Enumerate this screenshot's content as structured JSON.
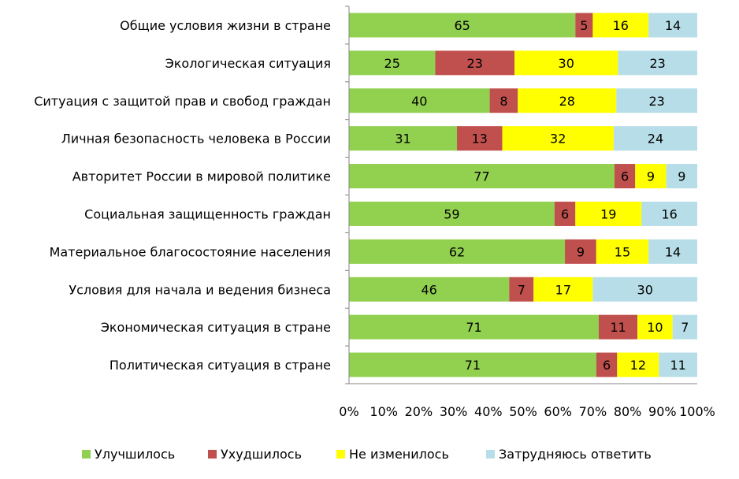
{
  "chart_data": {
    "type": "bar",
    "orientation": "horizontal",
    "stacked": true,
    "percent": true,
    "categories": [
      "Общие условия жизни в стране",
      "Экологическая ситуация",
      "Ситуация с защитой прав и свобод граждан",
      "Личная безопасность человека в России",
      "Авторитет России в мировой политике",
      "Социальная защищенность граждан",
      "Материальное благосостояние населения",
      "Условия для начала и ведения бизнеса",
      "Экономическая ситуация в стране",
      "Политическая ситуация в стране"
    ],
    "series": [
      {
        "name": "Улучшилось",
        "color": "#92d050",
        "values": [
          65,
          25,
          40,
          31,
          77,
          59,
          62,
          46,
          71,
          71
        ]
      },
      {
        "name": "Ухудшилось",
        "color": "#c0504d",
        "values": [
          5,
          23,
          8,
          13,
          6,
          6,
          9,
          7,
          11,
          6
        ]
      },
      {
        "name": "Не изменилось",
        "color": "#ffff00",
        "values": [
          16,
          30,
          28,
          32,
          9,
          19,
          15,
          17,
          10,
          12
        ]
      },
      {
        "name": "Затрудняюсь ответить",
        "color": "#b7dee8",
        "values": [
          14,
          23,
          23,
          24,
          9,
          16,
          14,
          30,
          7,
          11
        ]
      }
    ],
    "xlim": [
      0,
      100
    ],
    "xticks": [
      "0%",
      "10%",
      "20%",
      "30%",
      "40%",
      "50%",
      "60%",
      "70%",
      "80%",
      "90%",
      "100%"
    ],
    "grid": false,
    "legend_position": "bottom"
  }
}
